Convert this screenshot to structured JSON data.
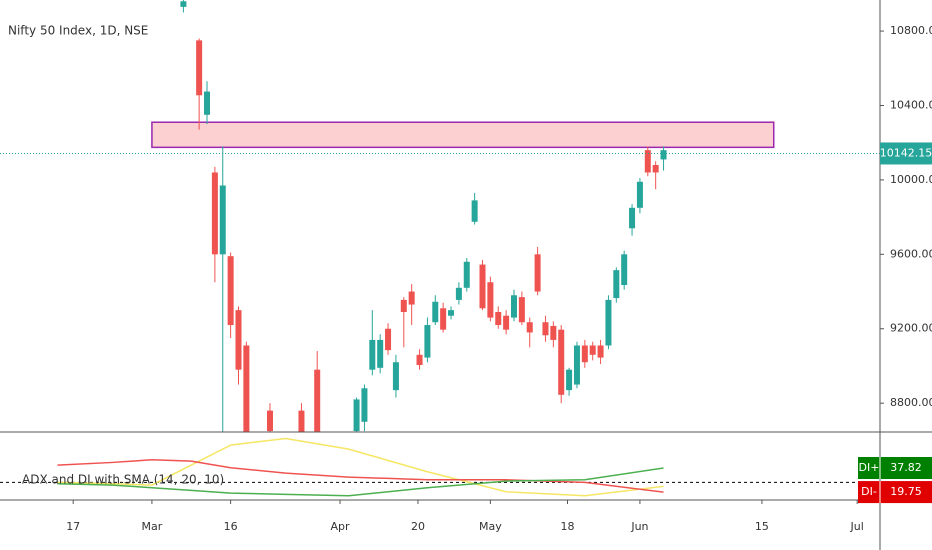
{
  "chart_data": [
    {
      "type": "candlestick",
      "title": "Nifty 50 Index, 1D, NSE",
      "x": [
        14,
        16,
        17,
        18,
        19,
        20,
        21,
        22,
        25,
        29,
        31,
        36,
        37,
        38,
        39,
        40,
        41,
        42,
        43,
        44,
        45,
        46,
        47,
        48,
        49,
        50,
        51,
        52,
        53,
        54,
        55,
        56,
        57,
        58,
        59,
        60,
        61,
        62,
        63,
        64,
        65,
        66,
        67,
        68,
        69,
        70,
        71,
        72,
        73,
        74,
        75
      ],
      "open": [
        10930,
        10750,
        10350,
        10040,
        9600,
        9590,
        9300,
        9110,
        8760,
        8760,
        8980,
        8650,
        8700,
        8980,
        8990,
        9200,
        8870,
        9355,
        9400,
        9060,
        9045,
        9235,
        9310,
        9270,
        9355,
        9420,
        9775,
        9545,
        9450,
        9290,
        9270,
        9260,
        9370,
        9235,
        9600,
        9235,
        9215,
        9195,
        8870,
        8900,
        9110,
        9110,
        9110,
        9110,
        9365,
        9435,
        9740,
        9850,
        10160,
        10080,
        10110
      ],
      "high": [
        10967,
        10760,
        10530,
        10070,
        10180,
        9610,
        9320,
        9130,
        8800,
        8800,
        9080,
        8830,
        8900,
        9300,
        9170,
        9230,
        9060,
        9370,
        9440,
        9090,
        9260,
        9380,
        9340,
        9320,
        9450,
        9580,
        9930,
        9570,
        9480,
        9320,
        9300,
        9410,
        9400,
        9260,
        9640,
        9270,
        9240,
        9220,
        8990,
        9130,
        9140,
        9130,
        9140,
        9380,
        9530,
        9620,
        9870,
        10010,
        10180,
        10100,
        10180
      ],
      "low": [
        10900,
        10270,
        10300,
        9450,
        8600,
        9150,
        8900,
        8500,
        8500,
        8500,
        8550,
        8600,
        8650,
        8950,
        8960,
        9060,
        8830,
        9100,
        9220,
        8980,
        9020,
        9220,
        9180,
        9250,
        9330,
        9400,
        9760,
        9300,
        9240,
        9200,
        9170,
        9240,
        9220,
        9100,
        9380,
        9130,
        9100,
        8800,
        8840,
        8880,
        8990,
        9030,
        9010,
        9090,
        9340,
        9410,
        9700,
        9820,
        10020,
        9950,
        10050
      ],
      "close": [
        10960,
        10455,
        10475,
        9600,
        9970,
        9220,
        8980,
        8600,
        8650,
        8600,
        8600,
        8820,
        8880,
        9140,
        9140,
        9085,
        9020,
        9290,
        9330,
        9005,
        9220,
        9345,
        9195,
        9300,
        9420,
        9560,
        9890,
        9310,
        9260,
        9220,
        9195,
        9380,
        9235,
        9180,
        9400,
        9165,
        9140,
        8845,
        8980,
        9110,
        9020,
        9060,
        9045,
        9355,
        9515,
        9600,
        9850,
        9990,
        10040,
        10040,
        10160
      ],
      "up_color": "#26a69a",
      "down_color": "#ef5350",
      "xlim": [
        -9.3,
        102.5
      ],
      "xticks": [
        {
          "value": 0,
          "label": "17"
        },
        {
          "value": 10,
          "label": "Mar"
        },
        {
          "value": 20,
          "label": "16"
        },
        {
          "value": 33.9,
          "label": "Apr"
        },
        {
          "value": 43.8,
          "label": "20"
        },
        {
          "value": 53,
          "label": "May"
        },
        {
          "value": 62.8,
          "label": "18"
        },
        {
          "value": 72,
          "label": "Jun"
        },
        {
          "value": 87.5,
          "label": "15"
        },
        {
          "value": 99.6,
          "label": "Jul"
        }
      ],
      "ylim": [
        8645,
        10967
      ],
      "yticks": [
        {
          "value": 8800,
          "label": "8800.00"
        },
        {
          "value": 9200,
          "label": "9200.00"
        },
        {
          "value": 9600,
          "label": "9600.00"
        },
        {
          "value": 10000,
          "label": "10000.00"
        },
        {
          "value": 10400,
          "label": "10400.00"
        },
        {
          "value": 10800,
          "label": "10800.00"
        }
      ],
      "zone": {
        "low": 10175,
        "high": 10310,
        "x": [
          10,
          89
        ]
      },
      "last_price": 10142.15
    },
    {
      "type": "line",
      "title": "ADX and DI with SMA (14, 20, 10)",
      "x": [
        -2,
        5,
        10,
        15,
        20,
        27,
        35,
        45,
        55,
        65,
        75
      ],
      "ylim": [
        13.8,
        64.1
      ],
      "hline": 27,
      "series": [
        {
          "color": "#f5e663",
          "values": [
            27,
            26,
            25,
            40,
            55,
            60,
            52,
            35,
            20,
            17,
            24
          ]
        },
        {
          "name": "DI-",
          "color": "#ef5350",
          "values": [
            40,
            42,
            44,
            43,
            38,
            34,
            31,
            29,
            29,
            27,
            19.75
          ]
        },
        {
          "name": "DI+",
          "color": "#4caf50",
          "values": [
            26,
            25,
            23,
            21,
            19,
            18,
            17,
            23,
            28,
            29,
            37.82
          ]
        }
      ]
    }
  ]
}
